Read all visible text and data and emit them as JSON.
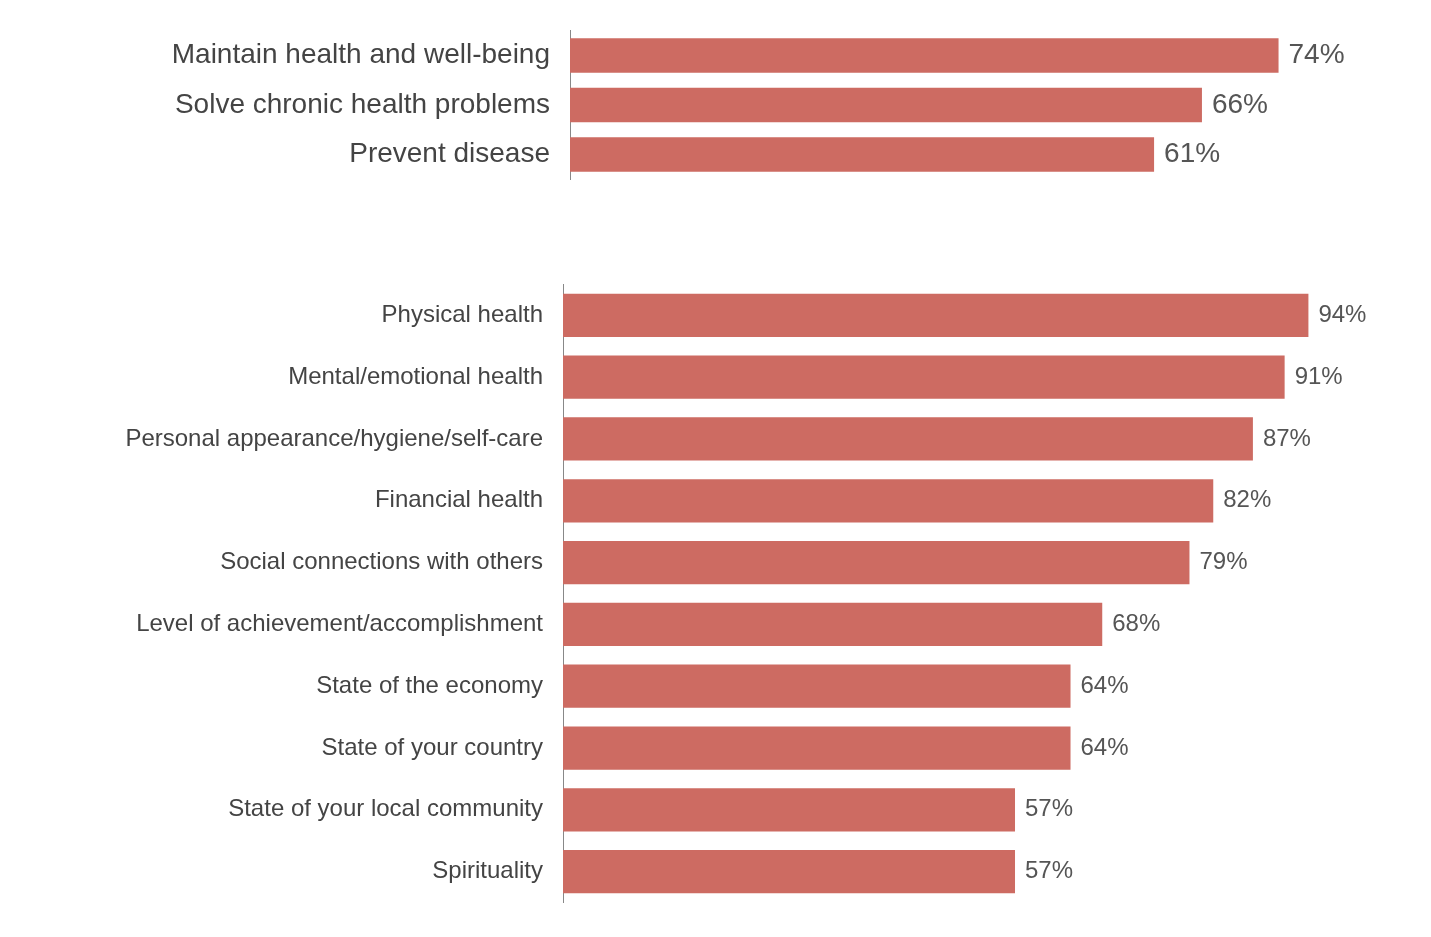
{
  "chart_data": [
    {
      "type": "bar",
      "orientation": "horizontal",
      "tick_labels": "y",
      "categories": [
        "Maintain health and well-being",
        "Solve chronic health problems",
        "Prevent disease"
      ],
      "values": [
        74,
        66,
        61
      ],
      "value_labels": [
        "74%",
        "66%",
        "61%"
      ],
      "color": "#cd6b62"
    },
    {
      "type": "bar",
      "orientation": "horizontal",
      "tick_labels": "y",
      "categories": [
        "Physical health",
        "Mental/emotional health",
        "Personal appearance/hygiene/self-care",
        "Financial health",
        "Social connections with others",
        "Level of achievement/accomplishment",
        "State of the economy",
        "State of your country",
        "State of your local community",
        "Spirituality"
      ],
      "values": [
        94,
        91,
        87,
        82,
        79,
        68,
        64,
        64,
        57,
        57
      ],
      "value_labels": [
        "94%",
        "91%",
        "87%",
        "82%",
        "79%",
        "68%",
        "64%",
        "64%",
        "57%",
        "57%"
      ],
      "color": "#cd6b62"
    }
  ]
}
